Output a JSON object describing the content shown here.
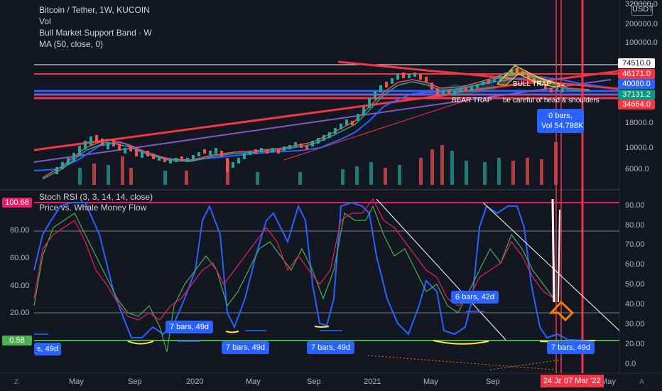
{
  "header": {
    "symbol_line": "Bitcoin / Tether, 1W, KUCOIN",
    "indicators": [
      "Vol",
      "Bull Market Support Band · W",
      "MA (50, close, 0)"
    ],
    "currency_button": "USDT"
  },
  "price_axis": {
    "ticks": [
      "320000.0",
      "200000.0",
      "100000.0",
      "18000.0",
      "10000.0",
      "6000.0"
    ],
    "badges": [
      {
        "label": "74510.0",
        "color": "#ffffff",
        "text_color": "#131722"
      },
      {
        "label": "46171.0",
        "color": "#f23645",
        "text_color": "#ffffff"
      },
      {
        "label": "40080.0",
        "color": "#2962ff",
        "text_color": "#ffffff"
      },
      {
        "label": "37131.2",
        "color": "#089981",
        "text_color": "#ffffff"
      },
      {
        "label": "34664.0",
        "color": "#f23645",
        "text_color": "#ffffff"
      }
    ]
  },
  "annotations": {
    "bull_trap": "BULL TRAP",
    "bear_trap": "BEAR TRAP",
    "head_shoulders": "be careful of head & shoulders",
    "tooltip_line1": "0 bars,",
    "tooltip_line2": "Vol 54.798K"
  },
  "rsi_panel": {
    "title": "Stoch RSI (3, 3, 14, 14, close)",
    "subtitle": "Price vs. Whale Money Flow",
    "left_ticks": [
      "80.00",
      "60.00",
      "40.00",
      "20.00"
    ],
    "left_badges": [
      {
        "label": "100.68",
        "color": "#e91e63"
      },
      {
        "label": "0.58",
        "color": "#4caf50"
      }
    ],
    "right_ticks": [
      "90.00",
      "80.00",
      "70.00",
      "60.00",
      "50.00",
      "40.00",
      "30.00",
      "20.00",
      "0.0"
    ],
    "bubbles": [
      "s, 49d",
      "7 bars, 49d",
      "7 bars, 49d",
      "7 bars, 49d",
      "6 bars, 42d",
      "7 bars, 49d"
    ]
  },
  "time_axis": {
    "labels": [
      "May",
      "Sep",
      "2020",
      "May",
      "Sep",
      "2021",
      "May",
      "Sep",
      "May"
    ],
    "date_badge_left": "24 Ja",
    "date_badge_right": "07 Mar '22"
  },
  "corners": {
    "left": "Z",
    "right": "A"
  },
  "colors": {
    "background": "#131722",
    "up_candle": "#26a69a",
    "down_candle": "#ef5350",
    "ma_blue": "#2962ff",
    "trend_red": "#f23645",
    "trend_purple": "#7e57c2",
    "k_line": "#2962ff",
    "green_line": "#4caf50",
    "red_line": "#e91e63"
  }
}
